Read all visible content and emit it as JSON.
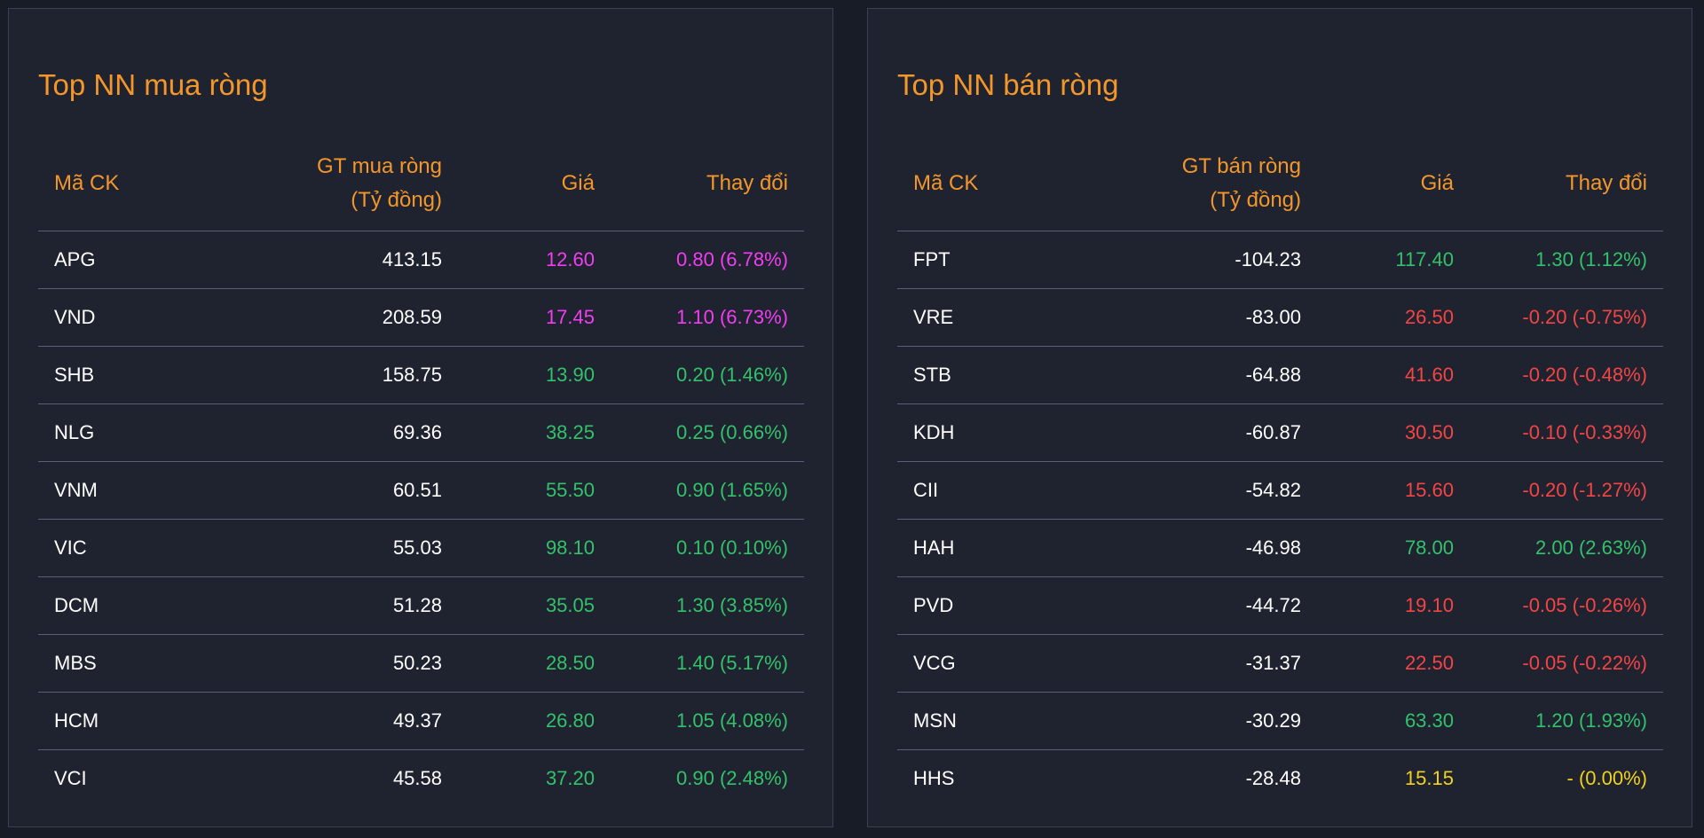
{
  "colors": {
    "ceiling": "#f03ef0",
    "up": "#33c26b",
    "down": "#f44545",
    "reference": "#f2d21b",
    "header": "#f3972b"
  },
  "buy": {
    "title": "Top NN mua ròng",
    "headers": {
      "symbol": "Mã CK",
      "value_line1": "GT mua ròng",
      "value_line2": "(Tỷ đồng)",
      "price": "Giá",
      "change": "Thay đổi"
    },
    "rows": [
      {
        "symbol": "APG",
        "value": "413.15",
        "price": "12.60",
        "change": "0.80 (6.78%)",
        "status": "ceiling"
      },
      {
        "symbol": "VND",
        "value": "208.59",
        "price": "17.45",
        "change": "1.10 (6.73%)",
        "status": "ceiling"
      },
      {
        "symbol": "SHB",
        "value": "158.75",
        "price": "13.90",
        "change": "0.20 (1.46%)",
        "status": "up"
      },
      {
        "symbol": "NLG",
        "value": "69.36",
        "price": "38.25",
        "change": "0.25 (0.66%)",
        "status": "up"
      },
      {
        "symbol": "VNM",
        "value": "60.51",
        "price": "55.50",
        "change": "0.90 (1.65%)",
        "status": "up"
      },
      {
        "symbol": "VIC",
        "value": "55.03",
        "price": "98.10",
        "change": "0.10 (0.10%)",
        "status": "up"
      },
      {
        "symbol": "DCM",
        "value": "51.28",
        "price": "35.05",
        "change": "1.30 (3.85%)",
        "status": "up"
      },
      {
        "symbol": "MBS",
        "value": "50.23",
        "price": "28.50",
        "change": "1.40 (5.17%)",
        "status": "up"
      },
      {
        "symbol": "HCM",
        "value": "49.37",
        "price": "26.80",
        "change": "1.05 (4.08%)",
        "status": "up"
      },
      {
        "symbol": "VCI",
        "value": "45.58",
        "price": "37.20",
        "change": "0.90 (2.48%)",
        "status": "up"
      }
    ]
  },
  "sell": {
    "title": "Top NN bán ròng",
    "headers": {
      "symbol": "Mã CK",
      "value_line1": "GT bán ròng",
      "value_line2": "(Tỷ đồng)",
      "price": "Giá",
      "change": "Thay đổi"
    },
    "rows": [
      {
        "symbol": "FPT",
        "value": "-104.23",
        "price": "117.40",
        "change": "1.30 (1.12%)",
        "status": "up"
      },
      {
        "symbol": "VRE",
        "value": "-83.00",
        "price": "26.50",
        "change": "-0.20 (-0.75%)",
        "status": "down"
      },
      {
        "symbol": "STB",
        "value": "-64.88",
        "price": "41.60",
        "change": "-0.20 (-0.48%)",
        "status": "down"
      },
      {
        "symbol": "KDH",
        "value": "-60.87",
        "price": "30.50",
        "change": "-0.10 (-0.33%)",
        "status": "down"
      },
      {
        "symbol": "CII",
        "value": "-54.82",
        "price": "15.60",
        "change": "-0.20 (-1.27%)",
        "status": "down"
      },
      {
        "symbol": "HAH",
        "value": "-46.98",
        "price": "78.00",
        "change": "2.00 (2.63%)",
        "status": "up"
      },
      {
        "symbol": "PVD",
        "value": "-44.72",
        "price": "19.10",
        "change": "-0.05 (-0.26%)",
        "status": "down"
      },
      {
        "symbol": "VCG",
        "value": "-31.37",
        "price": "22.50",
        "change": "-0.05 (-0.22%)",
        "status": "down"
      },
      {
        "symbol": "MSN",
        "value": "-30.29",
        "price": "63.30",
        "change": "1.20 (1.93%)",
        "status": "up"
      },
      {
        "symbol": "HHS",
        "value": "-28.48",
        "price": "15.15",
        "change": "- (0.00%)",
        "status": "reference"
      }
    ]
  }
}
